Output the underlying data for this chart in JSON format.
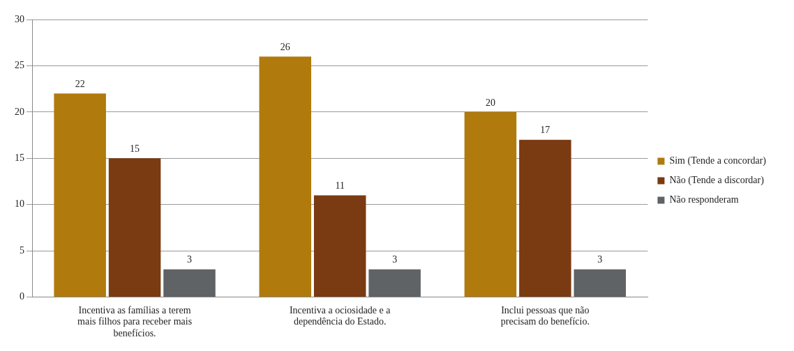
{
  "chart_data": {
    "type": "bar",
    "categories": [
      "Incentiva as famílias a terem mais filhos para receber mais benefícios.",
      "Incentiva a ociosidade e a dependência do Estado.",
      "Inclui pessoas que não precisam do benefício."
    ],
    "series": [
      {
        "name": "Sim (Tende a concordar)",
        "color": "#b07a0c",
        "values": [
          22,
          26,
          20
        ]
      },
      {
        "name": "Não (Tende a discordar)",
        "color": "#7a3a12",
        "values": [
          15,
          11,
          17
        ]
      },
      {
        "name": "Não responderam",
        "color": "#5f6366",
        "values": [
          3,
          3,
          3
        ]
      }
    ],
    "ylim": [
      0,
      30
    ],
    "yticks": [
      0,
      5,
      10,
      15,
      20,
      25,
      30
    ],
    "grid": "y",
    "legend": "right",
    "data_labels": true
  }
}
